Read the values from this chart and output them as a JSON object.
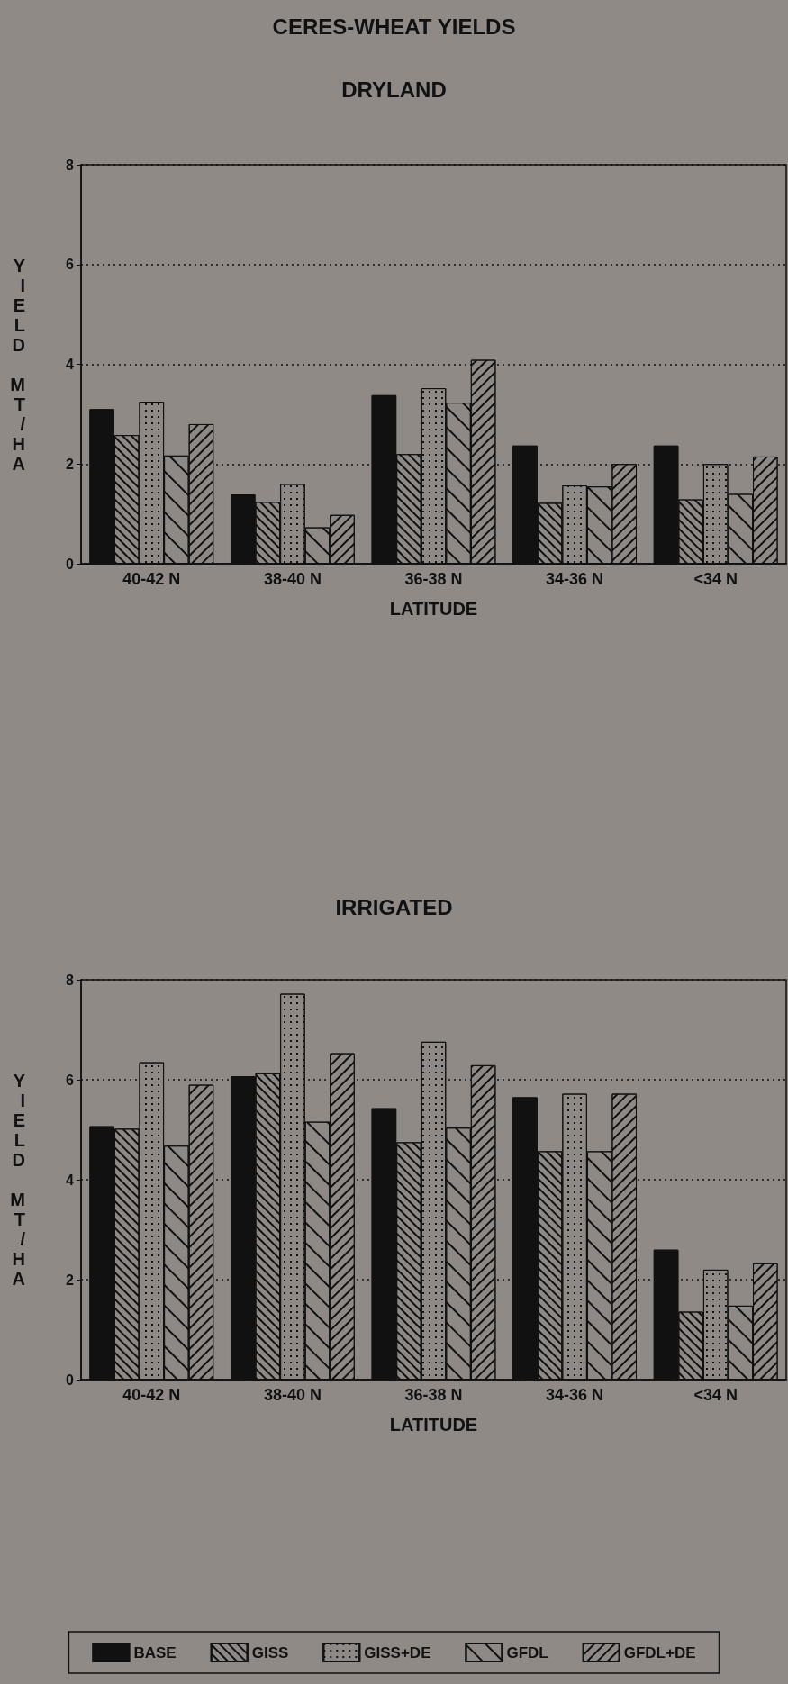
{
  "chart_data": [
    {
      "type": "bar",
      "title": "CERES-WHEAT YIELDS",
      "subtitle": "DRYLAND",
      "xlabel": "LATITUDE",
      "ylabel": "YIELD MT/HA",
      "categories": [
        "40-42 N",
        "38-40 N",
        "36-38 N",
        "34-36 N",
        "<34 N"
      ],
      "series": [
        {
          "color": "#111111",
          "values": [
            3.1,
            1.39,
            3.38,
            2.37,
            2.37
          ]
        },
        {
          "color": "#8e8985",
          "values": [
            2.58,
            1.24,
            2.2,
            1.22,
            1.29
          ]
        },
        {
          "color": "#8e8985",
          "values": [
            3.25,
            1.6,
            3.52,
            1.57,
            2.0
          ]
        },
        {
          "color": "#8e8985",
          "values": [
            2.17,
            0.73,
            3.23,
            1.55,
            1.4
          ]
        },
        {
          "color": "#8e8985",
          "values": [
            2.8,
            0.98,
            4.09,
            2.0,
            2.15
          ]
        }
      ],
      "ylim": [
        0,
        8
      ],
      "yticks": [
        0,
        2,
        4,
        6,
        8
      ],
      "grid": "y",
      "legend": false
    },
    {
      "type": "bar",
      "title": "IRRIGATED",
      "xlabel": "LATITUDE",
      "ylabel": "YIELD MT/HA",
      "categories": [
        "40-42 N",
        "38-40 N",
        "36-38 N",
        "34-36 N",
        "<34 N"
      ],
      "series": [
        {
          "name": "BASE",
          "color": "#111111",
          "values": [
            5.07,
            6.07,
            5.43,
            5.65,
            2.6
          ]
        },
        {
          "name": "GISS",
          "color": "#8e8985",
          "values": [
            5.02,
            6.13,
            4.75,
            4.57,
            1.36
          ]
        },
        {
          "name": "GISS+DE",
          "color": "#8e8985",
          "values": [
            6.35,
            7.72,
            6.76,
            5.72,
            2.2
          ]
        },
        {
          "name": "GFDL",
          "color": "#8e8985",
          "values": [
            4.68,
            5.16,
            5.04,
            4.57,
            1.48
          ]
        },
        {
          "name": "GFDL+DE",
          "color": "#8e8985",
          "values": [
            5.9,
            6.53,
            6.29,
            5.72,
            2.33
          ]
        }
      ],
      "ylim": [
        0,
        8
      ],
      "yticks": [
        0,
        2,
        4,
        6,
        8
      ],
      "grid": "y",
      "legend": "bottom"
    }
  ]
}
